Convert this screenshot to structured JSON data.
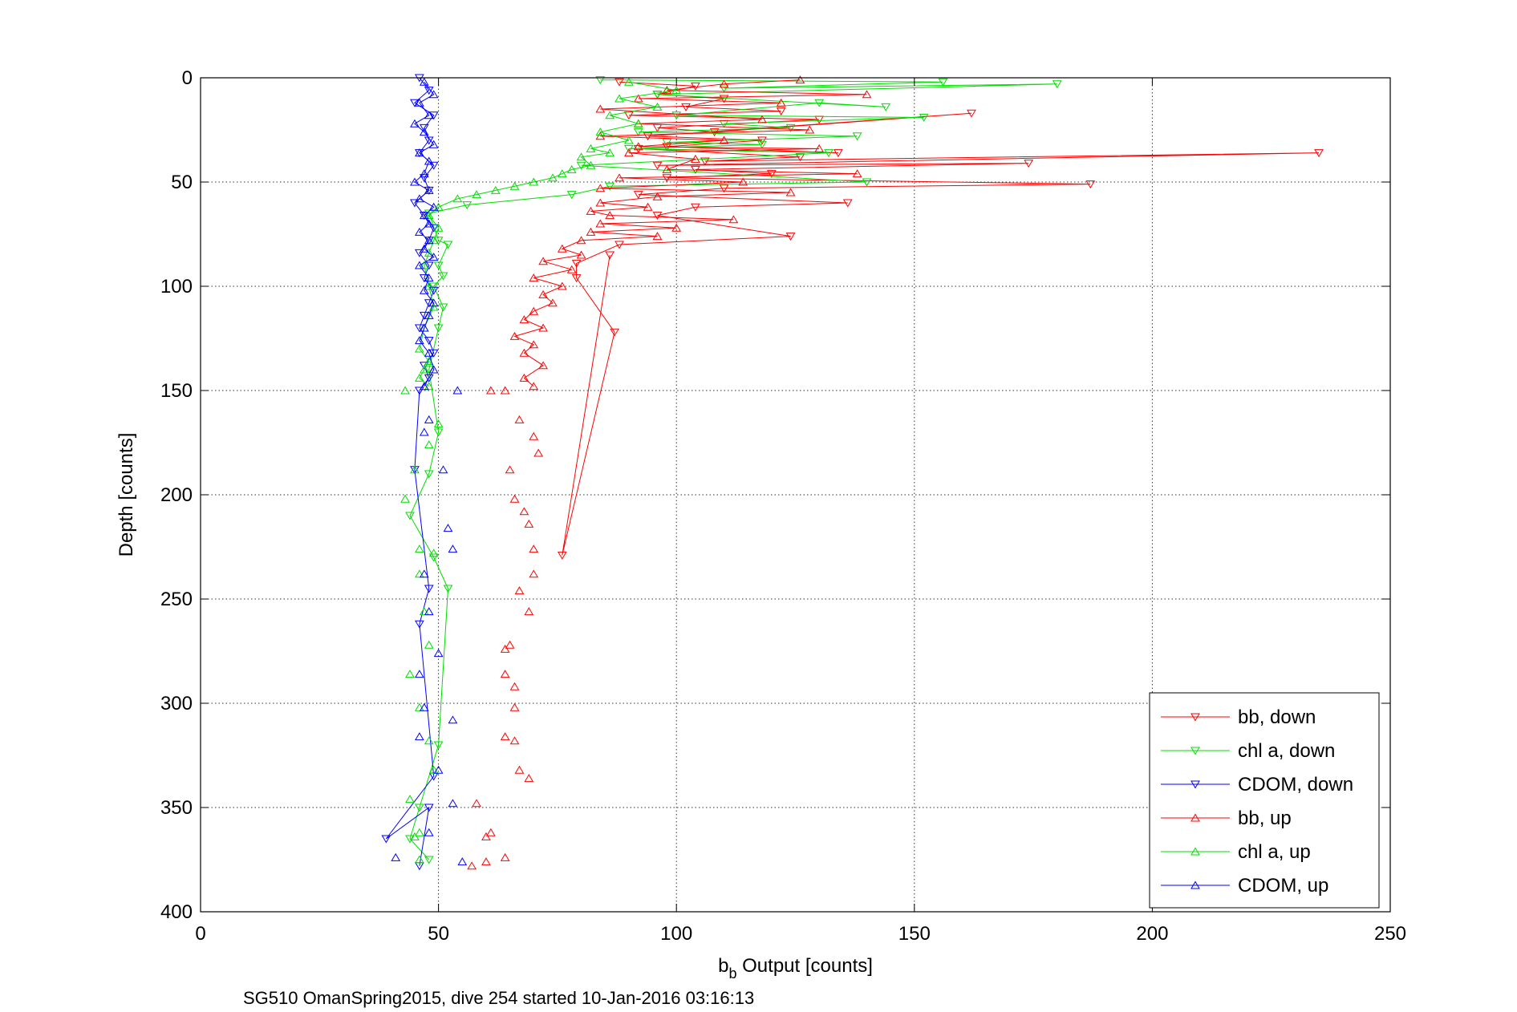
{
  "chart_data": {
    "type": "scatter",
    "xlabel_main": "b",
    "xlabel_sub": "b",
    "xlabel_rest": " Output [counts]",
    "ylabel": "Depth [counts]",
    "caption": "SG510 OmanSpring2015, dive 254 started 10-Jan-2016 03:16:13",
    "xlim": [
      0,
      250
    ],
    "ylim": [
      0,
      400
    ],
    "y_reversed": true,
    "grid": true,
    "legend_position": "bottom-right",
    "xticks": [
      "0",
      "50",
      "100",
      "150",
      "200",
      "250"
    ],
    "yticks": [
      "0",
      "50",
      "100",
      "150",
      "200",
      "250",
      "300",
      "350",
      "400"
    ],
    "series": [
      {
        "name": "bb, down",
        "color": "#ff0000",
        "marker": "triangle-down",
        "connected": true,
        "x": [
          88,
          104,
          96,
          110,
          102,
          122,
          90,
          130,
          96,
          108,
          162,
          94,
          118,
          98,
          134,
          92,
          126,
          106,
          235,
          96,
          174,
          104,
          120,
          98,
          187,
          110,
          92,
          136,
          104,
          96,
          124,
          88,
          79,
          79,
          87,
          76,
          86
        ],
        "y": [
          2,
          4,
          8,
          10,
          14,
          16,
          18,
          20,
          24,
          26,
          17,
          28,
          30,
          33,
          36,
          34,
          38,
          40,
          36,
          42,
          41,
          44,
          46,
          48,
          51,
          53,
          56,
          60,
          62,
          66,
          76,
          80,
          89,
          96,
          122,
          229,
          85
        ]
      },
      {
        "name": "chl a, down",
        "color": "#00dd00",
        "marker": "triangle-down",
        "connected": true,
        "x": [
          84,
          156,
          110,
          180,
          96,
          144,
          130,
          100,
          152,
          110,
          124,
          92,
          138,
          98,
          118,
          90,
          132,
          80,
          140,
          86,
          78,
          56,
          48,
          50,
          52,
          50,
          51,
          49,
          51,
          50,
          48,
          50,
          48,
          44,
          49,
          52,
          50,
          46,
          44,
          48
        ],
        "y": [
          1,
          2,
          5,
          3,
          8,
          14,
          12,
          18,
          19,
          22,
          24,
          26,
          28,
          31,
          32,
          34,
          36,
          42,
          50,
          52,
          56,
          61,
          65,
          78,
          80,
          90,
          95,
          100,
          110,
          120,
          140,
          170,
          190,
          210,
          230,
          245,
          320,
          350,
          365,
          375
        ]
      },
      {
        "name": "CDOM, down",
        "color": "#0000ff",
        "marker": "triangle-down",
        "connected": true,
        "x": [
          46,
          48,
          45,
          49,
          47,
          48,
          46,
          49,
          47,
          48,
          45,
          47,
          49,
          48,
          46,
          48,
          47,
          49,
          48,
          47,
          46,
          48,
          49,
          47,
          48,
          46,
          45,
          48,
          46,
          49,
          39,
          48,
          46
        ],
        "y": [
          0,
          6,
          12,
          18,
          24,
          30,
          36,
          42,
          48,
          54,
          60,
          66,
          72,
          78,
          84,
          90,
          96,
          102,
          108,
          114,
          120,
          126,
          132,
          138,
          144,
          150,
          188,
          245,
          262,
          335,
          365,
          350,
          378
        ]
      },
      {
        "name": "bb, up",
        "color": "#ff0000",
        "marker": "triangle-up",
        "connected": true,
        "x": [
          126,
          110,
          98,
          140,
          92,
          122,
          84,
          118,
          92,
          128,
          84,
          110,
          92,
          130,
          90,
          104,
          98,
          138,
          88,
          114,
          84,
          124,
          96,
          84,
          94,
          82,
          86,
          112,
          84,
          100,
          82,
          96,
          80,
          76,
          80,
          72,
          78,
          70,
          76,
          72,
          74,
          70,
          68,
          72,
          66,
          70,
          68,
          72,
          68,
          70
        ],
        "y": [
          1,
          3,
          6,
          8,
          10,
          12,
          15,
          20,
          22,
          25,
          28,
          30,
          33,
          34,
          36,
          39,
          44,
          46,
          48,
          50,
          53,
          55,
          57,
          60,
          62,
          64,
          66,
          68,
          70,
          72,
          74,
          76,
          78,
          82,
          85,
          88,
          92,
          96,
          100,
          104,
          108,
          112,
          116,
          120,
          124,
          128,
          132,
          138,
          144,
          148
        ]
      },
      {
        "name": "chl a, up",
        "color": "#00dd00",
        "marker": "triangle-up",
        "connected": true,
        "x": [
          90,
          100,
          88,
          96,
          86,
          92,
          84,
          90,
          82,
          86,
          80,
          82,
          78,
          76,
          74,
          70,
          66,
          62,
          58,
          54,
          50,
          48,
          50,
          49,
          48,
          47,
          48,
          49,
          47,
          46,
          48,
          47,
          46,
          48
        ],
        "y": [
          2,
          6,
          10,
          14,
          18,
          22,
          26,
          30,
          34,
          36,
          38,
          42,
          44,
          46,
          48,
          50,
          52,
          54,
          56,
          58,
          62,
          66,
          72,
          78,
          84,
          90,
          100,
          110,
          120,
          130,
          136,
          140,
          144,
          148
        ]
      },
      {
        "name": "CDOM, up",
        "color": "#0000ff",
        "marker": "triangle-up",
        "connected": true,
        "x": [
          47,
          49,
          46,
          48,
          45,
          47,
          49,
          46,
          48,
          47,
          45,
          48,
          46,
          49,
          47,
          48,
          46,
          48,
          47,
          49,
          46,
          48,
          47,
          49,
          48,
          47,
          46,
          48,
          49,
          47
        ],
        "y": [
          2,
          8,
          12,
          18,
          22,
          26,
          32,
          36,
          40,
          46,
          50,
          54,
          58,
          62,
          66,
          70,
          74,
          78,
          82,
          86,
          90,
          96,
          102,
          108,
          114,
          120,
          126,
          132,
          140,
          148
        ]
      },
      {
        "name": "",
        "color": "#ff0000",
        "marker": "triangle-up",
        "connected": false,
        "x": [
          61,
          64,
          67,
          70,
          71,
          65,
          66,
          68,
          69,
          70,
          70,
          67,
          69,
          65,
          64,
          64,
          66,
          66,
          64,
          66,
          67,
          69,
          58,
          61,
          60,
          64,
          60,
          57
        ],
        "y": [
          150,
          150,
          164,
          172,
          180,
          188,
          202,
          208,
          214,
          226,
          238,
          246,
          256,
          272,
          274,
          286,
          292,
          302,
          316,
          318,
          332,
          336,
          348,
          362,
          364,
          374,
          376,
          378
        ]
      },
      {
        "name": "",
        "color": "#00dd00",
        "marker": "triangle-up",
        "connected": false,
        "x": [
          43,
          50,
          48,
          45,
          43,
          46,
          49,
          46,
          47,
          48,
          44,
          46,
          48,
          49,
          44,
          46,
          45,
          46
        ],
        "y": [
          150,
          166,
          176,
          188,
          202,
          226,
          228,
          238,
          256,
          272,
          286,
          302,
          318,
          332,
          346,
          362,
          364,
          375
        ]
      },
      {
        "name": "",
        "color": "#0000ff",
        "marker": "triangle-up",
        "connected": false,
        "x": [
          54,
          48,
          47,
          51,
          52,
          53,
          47,
          48,
          50,
          46,
          47,
          53,
          46,
          50,
          53,
          48,
          41,
          55
        ],
        "y": [
          150,
          164,
          170,
          188,
          216,
          226,
          238,
          256,
          276,
          286,
          302,
          308,
          316,
          332,
          348,
          362,
          374,
          376
        ]
      }
    ]
  }
}
